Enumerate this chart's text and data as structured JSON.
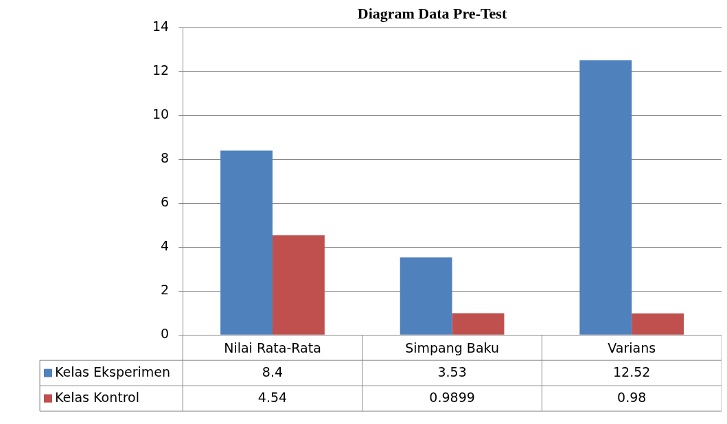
{
  "chart_data": {
    "type": "bar",
    "title": "Diagram Data Pre-Test",
    "categories": [
      "Nilai Rata-Rata",
      "Simpang Baku",
      "Varians"
    ],
    "series": [
      {
        "name": "Kelas Eksperimen",
        "color": "#4f81bd",
        "values": [
          8.4,
          3.53,
          12.52
        ]
      },
      {
        "name": "Kelas Kontrol",
        "color": "#c0504d",
        "values": [
          4.54,
          0.9899,
          0.98
        ]
      }
    ],
    "ylim": [
      0,
      14
    ],
    "yticks": [
      0,
      2,
      4,
      6,
      8,
      10,
      12,
      14
    ],
    "grid": "y",
    "legend": "bottom",
    "data_labels": true
  }
}
